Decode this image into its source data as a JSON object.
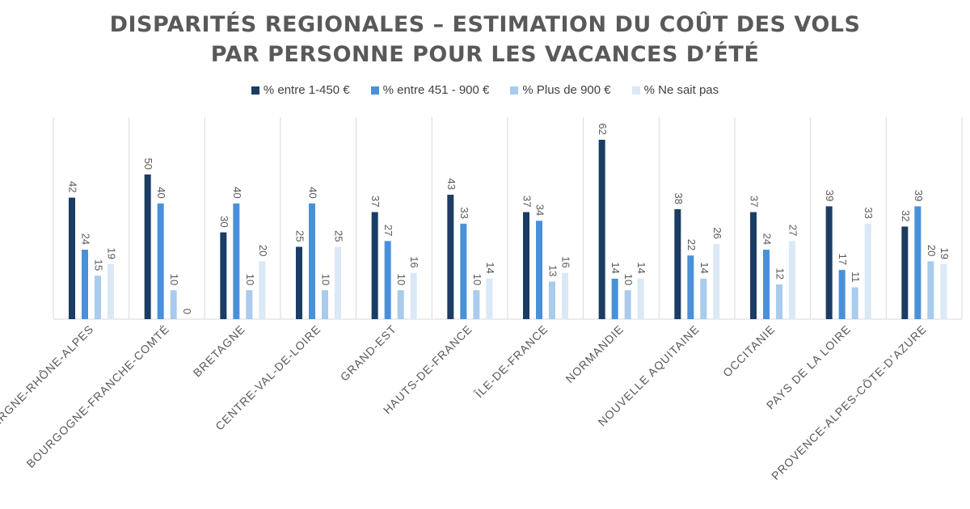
{
  "chart_data": {
    "type": "bar",
    "title": [
      "DISPARITÉS REGIONALES – ESTIMATION DU COÛT DES VOLS",
      "PAR PERSONNE POUR LES VACANCES D’ÉTÉ"
    ],
    "categories": [
      "AUVERGNE-RHÔNE-ALPES",
      "BOURGOGNE-FRANCHE-COMTÉ",
      "BRETAGNE",
      "CENTRE-VAL-DE-LOIRE",
      "GRAND-EST",
      "HAUTS-DE-FRANCE",
      "ÎLE-DE-FRANCE",
      "NORMANDIE",
      "NOUVELLE AQUITAINE",
      "OCCITANIE",
      "PAYS DE LA LOIRE",
      "PROVENCE-ALPES-CÔTE-D’AZURE"
    ],
    "series": [
      {
        "name": "% entre 1-450 €",
        "color": "#1b3c63",
        "values": [
          42,
          50,
          30,
          25,
          37,
          43,
          37,
          62,
          38,
          37,
          39,
          32
        ]
      },
      {
        "name": "% entre 451 - 900 €",
        "color": "#4a90d9",
        "values": [
          24,
          40,
          40,
          40,
          27,
          33,
          34,
          14,
          22,
          24,
          17,
          39
        ]
      },
      {
        "name": "% Plus de 900 €",
        "color": "#a9cbec",
        "values": [
          15,
          10,
          10,
          10,
          10,
          10,
          13,
          10,
          14,
          12,
          11,
          20
        ]
      },
      {
        "name": "% Ne sait pas",
        "color": "#dbe8f6",
        "values": [
          19,
          0,
          20,
          25,
          16,
          14,
          16,
          14,
          26,
          27,
          33,
          19
        ]
      }
    ],
    "ylim": [
      0,
      70
    ],
    "legend": "top",
    "data_labels": true,
    "grid": "vertical category separators"
  }
}
